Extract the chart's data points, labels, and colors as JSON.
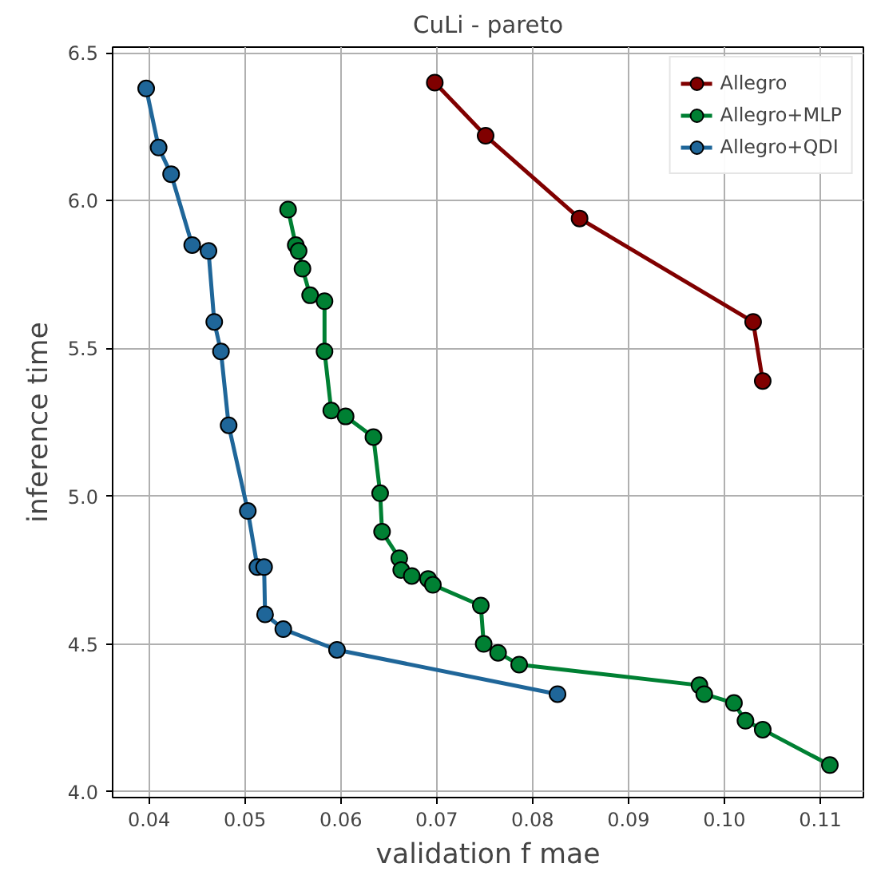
{
  "chart_data": {
    "type": "line",
    "title": "CuLi - pareto",
    "xlabel": "validation f mae",
    "ylabel": "inference time",
    "xlim": [
      0.0362,
      0.1145
    ],
    "ylim": [
      3.98,
      6.52
    ],
    "xticks": [
      {
        "value": 0.04,
        "label": "0.04"
      },
      {
        "value": 0.05,
        "label": "0.05"
      },
      {
        "value": 0.06,
        "label": "0.06"
      },
      {
        "value": 0.07,
        "label": "0.07"
      },
      {
        "value": 0.08,
        "label": "0.08"
      },
      {
        "value": 0.09,
        "label": "0.09"
      },
      {
        "value": 0.1,
        "label": "0.10"
      },
      {
        "value": 0.11,
        "label": "0.11"
      }
    ],
    "yticks": [
      {
        "value": 4,
        "label": "4.0"
      },
      {
        "value": 4.5,
        "label": "4.5"
      },
      {
        "value": 5,
        "label": "5.0"
      },
      {
        "value": 5.5,
        "label": "5.5"
      },
      {
        "value": 6,
        "label": "6.0"
      },
      {
        "value": 6.5,
        "label": "6.5"
      }
    ],
    "grid": true,
    "legend": "top right",
    "marker": "circle",
    "line_style": "solid",
    "series": [
      {
        "name": "Allegro",
        "color": "#800000",
        "x": [
          0.0698,
          0.0751,
          0.0849,
          0.103,
          0.104
        ],
        "values": [
          6.4,
          6.22,
          5.94,
          5.59,
          5.39
        ]
      },
      {
        "name": "Allegro+MLP",
        "color": "#008033",
        "x": [
          0.0545,
          0.0553,
          0.0556,
          0.056,
          0.0568,
          0.0583,
          0.0583,
          0.059,
          0.0605,
          0.0634,
          0.0641,
          0.0643,
          0.0661,
          0.0663,
          0.0674,
          0.0691,
          0.0696,
          0.0746,
          0.0749,
          0.0764,
          0.0786,
          0.0974,
          0.0979,
          0.101,
          0.1022,
          0.104,
          0.111
        ],
        "values": [
          5.97,
          5.85,
          5.83,
          5.77,
          5.68,
          5.66,
          5.49,
          5.29,
          5.27,
          5.2,
          5.01,
          4.88,
          4.79,
          4.75,
          4.73,
          4.72,
          4.7,
          4.63,
          4.5,
          4.47,
          4.43,
          4.36,
          4.33,
          4.3,
          4.24,
          4.21,
          4.09
        ]
      },
      {
        "name": "Allegro+QDI",
        "color": "#1f6699",
        "x": [
          0.0397,
          0.041,
          0.0423,
          0.0445,
          0.0462,
          0.0468,
          0.0475,
          0.0483,
          0.0503,
          0.0513,
          0.052,
          0.0521,
          0.054,
          0.0596,
          0.0826
        ],
        "values": [
          6.38,
          6.18,
          6.09,
          5.85,
          5.83,
          5.59,
          5.49,
          5.24,
          4.95,
          4.76,
          4.76,
          4.6,
          4.55,
          4.48,
          4.33
        ]
      }
    ]
  }
}
